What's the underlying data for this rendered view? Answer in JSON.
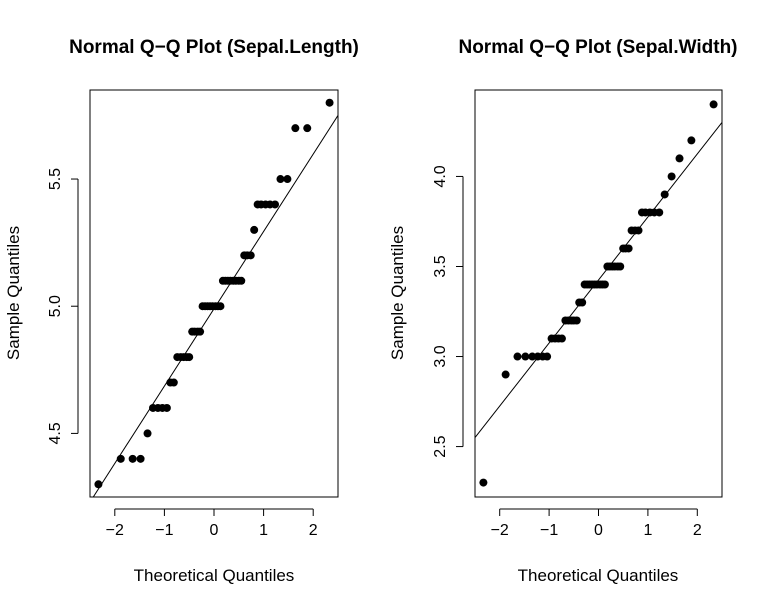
{
  "chart_data": [
    {
      "type": "scatter",
      "title": "Normal Q−Q Plot (Sepal.Length)",
      "xlabel": "Theoretical Quantiles",
      "ylabel": "Sample Quantiles",
      "xlim": [
        -2.5,
        2.5
      ],
      "ylim": [
        4.25,
        5.85
      ],
      "xticks": [
        -2,
        -1,
        0,
        1,
        2
      ],
      "xtick_labels": [
        "−2",
        "−1",
        "0",
        "1",
        "2"
      ],
      "yticks": [
        4.5,
        5.0,
        5.5
      ],
      "ytick_labels": [
        "4.5",
        "5.0",
        "5.5"
      ],
      "grid": false,
      "points": [
        [
          -2.33,
          4.3
        ],
        [
          -1.88,
          4.4
        ],
        [
          -1.64,
          4.4
        ],
        [
          -1.48,
          4.4
        ],
        [
          -1.34,
          4.5
        ],
        [
          -1.23,
          4.6
        ],
        [
          -1.13,
          4.6
        ],
        [
          -1.04,
          4.6
        ],
        [
          -0.95,
          4.6
        ],
        [
          -0.88,
          4.7
        ],
        [
          -0.81,
          4.7
        ],
        [
          -0.74,
          4.8
        ],
        [
          -0.67,
          4.8
        ],
        [
          -0.61,
          4.8
        ],
        [
          -0.55,
          4.8
        ],
        [
          -0.5,
          4.8
        ],
        [
          -0.44,
          4.9
        ],
        [
          -0.39,
          4.9
        ],
        [
          -0.33,
          4.9
        ],
        [
          -0.28,
          4.9
        ],
        [
          -0.23,
          5.0
        ],
        [
          -0.18,
          5.0
        ],
        [
          -0.13,
          5.0
        ],
        [
          -0.08,
          5.0
        ],
        [
          -0.03,
          5.0
        ],
        [
          0.03,
          5.0
        ],
        [
          0.08,
          5.0
        ],
        [
          0.13,
          5.0
        ],
        [
          0.18,
          5.1
        ],
        [
          0.23,
          5.1
        ],
        [
          0.28,
          5.1
        ],
        [
          0.33,
          5.1
        ],
        [
          0.39,
          5.1
        ],
        [
          0.44,
          5.1
        ],
        [
          0.5,
          5.1
        ],
        [
          0.55,
          5.1
        ],
        [
          0.61,
          5.2
        ],
        [
          0.67,
          5.2
        ],
        [
          0.74,
          5.2
        ],
        [
          0.81,
          5.3
        ],
        [
          0.88,
          5.4
        ],
        [
          0.95,
          5.4
        ],
        [
          1.04,
          5.4
        ],
        [
          1.13,
          5.4
        ],
        [
          1.23,
          5.4
        ],
        [
          1.34,
          5.5
        ],
        [
          1.48,
          5.5
        ],
        [
          1.64,
          5.7
        ],
        [
          1.88,
          5.7
        ],
        [
          2.33,
          5.8
        ]
      ],
      "reference_line": [
        [
          -2.5,
          4.23
        ],
        [
          2.5,
          5.75
        ]
      ]
    },
    {
      "type": "scatter",
      "title": "Normal Q−Q Plot (Sepal.Width)",
      "xlabel": "Theoretical Quantiles",
      "ylabel": "Sample Quantiles",
      "xlim": [
        -2.5,
        2.5
      ],
      "ylim": [
        2.22,
        4.48
      ],
      "xticks": [
        -2,
        -1,
        0,
        1,
        2
      ],
      "xtick_labels": [
        "−2",
        "−1",
        "0",
        "1",
        "2"
      ],
      "yticks": [
        2.5,
        3.0,
        3.5,
        4.0
      ],
      "ytick_labels": [
        "2.5",
        "3.0",
        "3.5",
        "4.0"
      ],
      "grid": false,
      "points": [
        [
          -2.33,
          2.3
        ],
        [
          -1.88,
          2.9
        ],
        [
          -1.64,
          3.0
        ],
        [
          -1.48,
          3.0
        ],
        [
          -1.34,
          3.0
        ],
        [
          -1.23,
          3.0
        ],
        [
          -1.13,
          3.0
        ],
        [
          -1.04,
          3.0
        ],
        [
          -0.95,
          3.1
        ],
        [
          -0.88,
          3.1
        ],
        [
          -0.81,
          3.1
        ],
        [
          -0.74,
          3.1
        ],
        [
          -0.67,
          3.2
        ],
        [
          -0.61,
          3.2
        ],
        [
          -0.55,
          3.2
        ],
        [
          -0.5,
          3.2
        ],
        [
          -0.44,
          3.2
        ],
        [
          -0.39,
          3.3
        ],
        [
          -0.33,
          3.3
        ],
        [
          -0.28,
          3.4
        ],
        [
          -0.23,
          3.4
        ],
        [
          -0.18,
          3.4
        ],
        [
          -0.13,
          3.4
        ],
        [
          -0.08,
          3.4
        ],
        [
          -0.03,
          3.4
        ],
        [
          0.03,
          3.4
        ],
        [
          0.08,
          3.4
        ],
        [
          0.13,
          3.4
        ],
        [
          0.18,
          3.5
        ],
        [
          0.23,
          3.5
        ],
        [
          0.28,
          3.5
        ],
        [
          0.33,
          3.5
        ],
        [
          0.39,
          3.5
        ],
        [
          0.44,
          3.5
        ],
        [
          0.5,
          3.6
        ],
        [
          0.55,
          3.6
        ],
        [
          0.61,
          3.6
        ],
        [
          0.67,
          3.7
        ],
        [
          0.74,
          3.7
        ],
        [
          0.81,
          3.7
        ],
        [
          0.88,
          3.8
        ],
        [
          0.95,
          3.8
        ],
        [
          1.04,
          3.8
        ],
        [
          1.13,
          3.8
        ],
        [
          1.23,
          3.8
        ],
        [
          1.34,
          3.9
        ],
        [
          1.48,
          4.0
        ],
        [
          1.64,
          4.1
        ],
        [
          1.88,
          4.2
        ],
        [
          2.33,
          4.4
        ]
      ],
      "reference_line": [
        [
          -2.5,
          2.55
        ],
        [
          2.5,
          4.3
        ]
      ]
    }
  ]
}
